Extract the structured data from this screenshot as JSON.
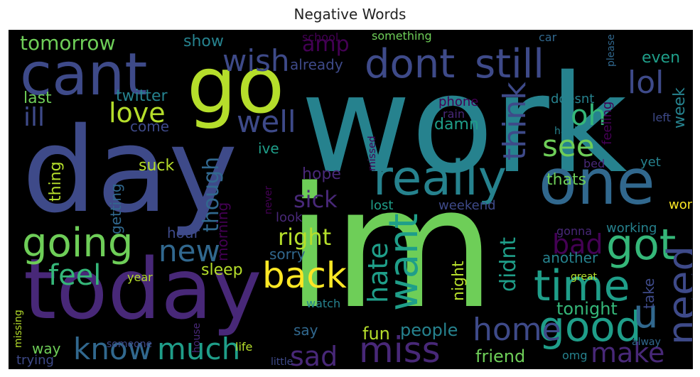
{
  "chart_data": {
    "type": "wordcloud",
    "title": "Negative Words",
    "palette": [
      "#440154",
      "#482878",
      "#3e4a89",
      "#31688e",
      "#26828e",
      "#1f9e89",
      "#35b779",
      "#6ece58",
      "#b5de2b",
      "#fde725"
    ],
    "words": [
      {
        "text": "work",
        "color": "#26828e",
        "rot": 0
      },
      {
        "text": "im",
        "color": "#6ece58",
        "rot": 0
      },
      {
        "text": "day",
        "color": "#3e4a89",
        "rot": 0
      },
      {
        "text": "today",
        "color": "#482878",
        "rot": 0
      },
      {
        "text": "go",
        "color": "#b5de2b",
        "rot": 0
      },
      {
        "text": "cant",
        "color": "#3e4a89",
        "rot": 0
      },
      {
        "text": "one",
        "color": "#31688e",
        "rot": 0
      },
      {
        "text": "really",
        "color": "#26828e",
        "rot": 0
      },
      {
        "text": "dont",
        "color": "#3e4a89",
        "rot": 0
      },
      {
        "text": "still",
        "color": "#3e4a89",
        "rot": 0
      },
      {
        "text": "miss",
        "color": "#482878",
        "rot": 0
      },
      {
        "text": "going",
        "color": "#6ece58",
        "rot": 0
      },
      {
        "text": "got",
        "color": "#35b779",
        "rot": 0
      },
      {
        "text": "time",
        "color": "#1f9e89",
        "rot": 0
      },
      {
        "text": "good",
        "color": "#1f9e89",
        "rot": 0
      },
      {
        "text": "know",
        "color": "#31688e",
        "rot": 0
      },
      {
        "text": "much",
        "color": "#1f9e89",
        "rot": 0
      },
      {
        "text": "home",
        "color": "#3e4a89",
        "rot": 0
      },
      {
        "text": "back",
        "color": "#fde725",
        "rot": 0
      },
      {
        "text": "want",
        "color": "#1f9e89",
        "rot": -90
      },
      {
        "text": "need",
        "color": "#3e4a89",
        "rot": -90
      },
      {
        "text": "wish",
        "color": "#3e4a89",
        "rot": 0
      },
      {
        "text": "well",
        "color": "#3e4a89",
        "rot": 0
      },
      {
        "text": "new",
        "color": "#31688e",
        "rot": 0
      },
      {
        "text": "feel",
        "color": "#35b779",
        "rot": 0
      },
      {
        "text": "lol",
        "color": "#3e4a89",
        "rot": 0
      },
      {
        "text": "love",
        "color": "#b5de2b",
        "rot": 0
      },
      {
        "text": "see",
        "color": "#6ece58",
        "rot": 0
      },
      {
        "text": "u",
        "color": "#31688e",
        "rot": 0
      },
      {
        "text": "sad",
        "color": "#482878",
        "rot": 0
      },
      {
        "text": "make",
        "color": "#482878",
        "rot": 0
      },
      {
        "text": "think",
        "color": "#3e4a89",
        "rot": -90
      },
      {
        "text": "hate",
        "color": "#1f9e89",
        "rot": -90
      },
      {
        "text": "oh",
        "color": "#35b779",
        "rot": 0
      },
      {
        "text": "bad",
        "color": "#440154",
        "rot": 0
      },
      {
        "text": "right",
        "color": "#b5de2b",
        "rot": 0
      },
      {
        "text": "tomorrow",
        "color": "#6ece58",
        "rot": 0
      },
      {
        "text": "ill",
        "color": "#3e4a89",
        "rot": 0
      },
      {
        "text": "sick",
        "color": "#482878",
        "rot": 0
      },
      {
        "text": "didnt",
        "color": "#1f9e89",
        "rot": -90
      },
      {
        "text": "though",
        "color": "#31688e",
        "rot": -90
      },
      {
        "text": "tonight",
        "color": "#35b779",
        "rot": 0
      },
      {
        "text": "people",
        "color": "#26828e",
        "rot": 0
      },
      {
        "text": "fun",
        "color": "#b5de2b",
        "rot": 0
      },
      {
        "text": "friend",
        "color": "#6ece58",
        "rot": 0
      },
      {
        "text": "sleep",
        "color": "#b5de2b",
        "rot": 0
      },
      {
        "text": "last",
        "color": "#6ece58",
        "rot": 0
      },
      {
        "text": "twitter",
        "color": "#26828e",
        "rot": 0
      },
      {
        "text": "show",
        "color": "#26828e",
        "rot": 0
      },
      {
        "text": "amp",
        "color": "#440154",
        "rot": 0
      },
      {
        "text": "already",
        "color": "#3e4a89",
        "rot": 0
      },
      {
        "text": "week",
        "color": "#26828e",
        "rot": -90
      },
      {
        "text": "come",
        "color": "#3e4a89",
        "rot": 0
      },
      {
        "text": "suck",
        "color": "#b5de2b",
        "rot": 0
      },
      {
        "text": "getting",
        "color": "#31688e",
        "rot": -90
      },
      {
        "text": "thing",
        "color": "#b5de2b",
        "rot": -90
      },
      {
        "text": "hope",
        "color": "#482878",
        "rot": 0
      },
      {
        "text": "thats",
        "color": "#6ece58",
        "rot": 0
      },
      {
        "text": "damn",
        "color": "#1f9e89",
        "rot": 0
      },
      {
        "text": "another",
        "color": "#26828e",
        "rot": 0
      },
      {
        "text": "sorry",
        "color": "#31688e",
        "rot": 0
      },
      {
        "text": "hour",
        "color": "#3e4a89",
        "rot": 0
      },
      {
        "text": "morning",
        "color": "#440154",
        "rot": -90
      },
      {
        "text": "night",
        "color": "#b5de2b",
        "rot": -90
      },
      {
        "text": "say",
        "color": "#31688e",
        "rot": 0
      },
      {
        "text": "way",
        "color": "#6ece58",
        "rot": 0
      },
      {
        "text": "take",
        "color": "#3e4a89",
        "rot": -90
      },
      {
        "text": "ive",
        "color": "#1f9e89",
        "rot": 0
      },
      {
        "text": "even",
        "color": "#1f9e89",
        "rot": 0
      },
      {
        "text": "doesnt",
        "color": "#26828e",
        "rot": 0
      },
      {
        "text": "phone",
        "color": "#440154",
        "rot": 0
      },
      {
        "text": "feeling",
        "color": "#440154",
        "rot": -90
      },
      {
        "text": "wont",
        "color": "#fde725",
        "rot": 0
      },
      {
        "text": "working",
        "color": "#26828e",
        "rot": 0
      },
      {
        "text": "yet",
        "color": "#26828e",
        "rot": 0
      },
      {
        "text": "weekend",
        "color": "#3e4a89",
        "rot": 0
      },
      {
        "text": "lost",
        "color": "#1f9e89",
        "rot": 0
      },
      {
        "text": "look",
        "color": "#482878",
        "rot": 0
      },
      {
        "text": "school",
        "color": "#440154",
        "rot": 0
      },
      {
        "text": "something",
        "color": "#6ece58",
        "rot": 0
      },
      {
        "text": "car",
        "color": "#31688e",
        "rot": 0
      },
      {
        "text": "please",
        "color": "#31688e",
        "rot": -90
      },
      {
        "text": "rain",
        "color": "#482878",
        "rot": 0
      },
      {
        "text": "left",
        "color": "#3e4a89",
        "rot": 0
      },
      {
        "text": "hard",
        "color": "#26828e",
        "rot": 0
      },
      {
        "text": "bed",
        "color": "#482878",
        "rot": 0
      },
      {
        "text": "missed",
        "color": "#440154",
        "rot": -90
      },
      {
        "text": "never",
        "color": "#440154",
        "rot": -90
      },
      {
        "text": "gonna",
        "color": "#482878",
        "rot": 0
      },
      {
        "text": "great",
        "color": "#b5de2b",
        "rot": 0
      },
      {
        "text": "omg",
        "color": "#26828e",
        "rot": 0
      },
      {
        "text": "alway",
        "color": "#31688e",
        "rot": 0
      },
      {
        "text": "year",
        "color": "#b5de2b",
        "rot": 0
      },
      {
        "text": "watch",
        "color": "#26828e",
        "rot": 0
      },
      {
        "text": "house",
        "color": "#482878",
        "rot": -90
      },
      {
        "text": "someone",
        "color": "#3e4a89",
        "rot": 0
      },
      {
        "text": "life",
        "color": "#b5de2b",
        "rot": 0
      },
      {
        "text": "trying",
        "color": "#3e4a89",
        "rot": 0
      },
      {
        "text": "little",
        "color": "#3e4a89",
        "rot": 0
      },
      {
        "text": "missing",
        "color": "#b5de2b",
        "rot": -90
      }
    ]
  }
}
